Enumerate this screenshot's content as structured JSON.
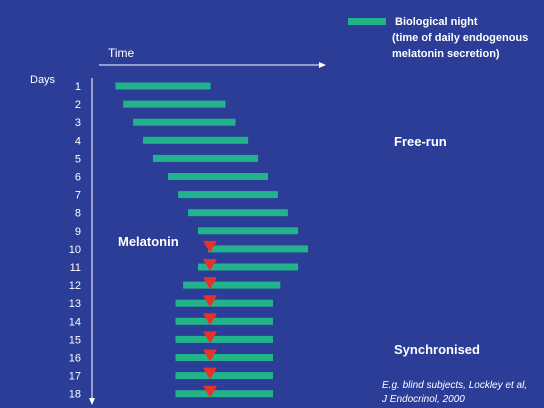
{
  "chart_data": {
    "type": "bar",
    "orientation": "horizontal-range",
    "x_axis": {
      "label": "Time",
      "range": [
        0,
        100
      ]
    },
    "y_axis": {
      "title": "Days"
    },
    "days": [
      "1",
      "2",
      "3",
      "4",
      "5",
      "6",
      "7",
      "8",
      "9",
      "10",
      "11",
      "12",
      "13",
      "14",
      "15",
      "16",
      "17",
      "18"
    ],
    "series": [
      {
        "name": "Biological night",
        "color": "#22b38b",
        "starts": [
          10.5,
          13.4,
          17.2,
          21.0,
          24.8,
          30.5,
          34.4,
          38.2,
          42.0,
          45.8,
          42.0,
          36.3,
          33.4,
          33.4,
          33.4,
          33.4,
          33.4,
          33.4
        ],
        "ends": [
          46.8,
          52.5,
          56.3,
          61.1,
          64.9,
          68.7,
          72.5,
          76.3,
          80.2,
          84.0,
          80.2,
          73.4,
          70.6,
          70.6,
          70.6,
          70.6,
          70.6,
          70.6
        ]
      }
    ],
    "legend": {
      "swatch_color": "#22b38b",
      "lines": [
        "Biological night",
        "(time of daily endogenous",
        "melatonin secretion)"
      ]
    },
    "marker": {
      "label": "Melatonin",
      "color": "#e8312a",
      "days": [
        "10",
        "11",
        "12",
        "13",
        "14",
        "15",
        "16",
        "17",
        "18"
      ]
    },
    "annotations": [
      "Free-run",
      "Synchronised"
    ],
    "citation": [
      "E.g. blind subjects, Lockley et al,",
      "J Endocrinol, 2000"
    ]
  }
}
